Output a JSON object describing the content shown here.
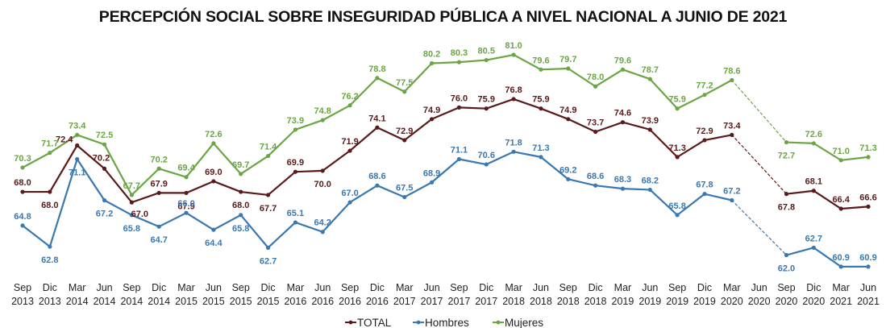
{
  "chart_data": {
    "type": "line",
    "title": "PERCEPCIÓN SOCIAL SOBRE INSEGURIDAD PÚBLICA A NIVEL NACIONAL A JUNIO DE 2021",
    "xlabel": "",
    "ylabel": "",
    "ylim": [
      60.9,
      81.0
    ],
    "grid": false,
    "legend_position": "bottom-center",
    "categories": [
      [
        "Sep",
        "2013"
      ],
      [
        "Dic",
        "2013"
      ],
      [
        "Mar",
        "2014"
      ],
      [
        "Jun",
        "2014"
      ],
      [
        "Sep",
        "2014"
      ],
      [
        "Dic",
        "2014"
      ],
      [
        "Mar",
        "2015"
      ],
      [
        "Jun",
        "2015"
      ],
      [
        "Sep",
        "2015"
      ],
      [
        "Dic",
        "2015"
      ],
      [
        "Mar",
        "2016"
      ],
      [
        "Jun",
        "2016"
      ],
      [
        "Sep",
        "2016"
      ],
      [
        "Dic",
        "2016"
      ],
      [
        "Mar",
        "2017"
      ],
      [
        "Jun",
        "2017"
      ],
      [
        "Sep",
        "2017"
      ],
      [
        "Dic",
        "2017"
      ],
      [
        "Mar",
        "2018"
      ],
      [
        "Jun",
        "2018"
      ],
      [
        "Sep",
        "2018"
      ],
      [
        "Dic",
        "2018"
      ],
      [
        "Mar",
        "2019"
      ],
      [
        "Jun",
        "2019"
      ],
      [
        "Sep",
        "2019"
      ],
      [
        "Dic",
        "2019"
      ],
      [
        "Mar",
        "2020"
      ],
      [
        "Jun",
        "2020"
      ],
      [
        "Sep",
        "2020"
      ],
      [
        "Dic",
        "2020"
      ],
      [
        "Mar",
        "2021"
      ],
      [
        "Jun",
        "2021"
      ]
    ],
    "gap_note": "No data for Jun 2020; dashed connector between Mar 2020 and Sep 2020",
    "series": [
      {
        "name": "TOTAL",
        "color": "#5b1a1a",
        "values": [
          68.0,
          68.0,
          72.4,
          70.2,
          67.0,
          67.9,
          67.9,
          69.0,
          68.0,
          67.7,
          69.9,
          70.0,
          71.9,
          74.1,
          72.9,
          74.9,
          76.0,
          75.9,
          76.8,
          75.9,
          74.9,
          73.7,
          74.6,
          73.9,
          71.3,
          72.9,
          73.4,
          null,
          67.8,
          68.1,
          66.4,
          66.6
        ]
      },
      {
        "name": "Hombres",
        "color": "#3a78b0",
        "values": [
          64.8,
          62.8,
          71.1,
          67.2,
          65.8,
          64.7,
          66.0,
          64.4,
          65.8,
          62.7,
          65.1,
          64.2,
          67.0,
          68.6,
          67.5,
          68.9,
          71.1,
          70.6,
          71.8,
          71.3,
          69.2,
          68.6,
          68.3,
          68.2,
          65.8,
          67.8,
          67.2,
          null,
          62.0,
          62.7,
          60.9,
          60.9
        ]
      },
      {
        "name": "Mujeres",
        "color": "#6aa644",
        "values": [
          70.3,
          71.7,
          73.4,
          72.5,
          67.7,
          70.2,
          69.4,
          72.6,
          69.7,
          71.4,
          73.9,
          74.8,
          76.2,
          78.8,
          77.5,
          80.2,
          80.3,
          80.5,
          81.0,
          79.6,
          79.7,
          78.0,
          79.6,
          78.7,
          75.9,
          77.2,
          78.6,
          null,
          72.7,
          72.6,
          71.0,
          71.3
        ]
      }
    ]
  }
}
